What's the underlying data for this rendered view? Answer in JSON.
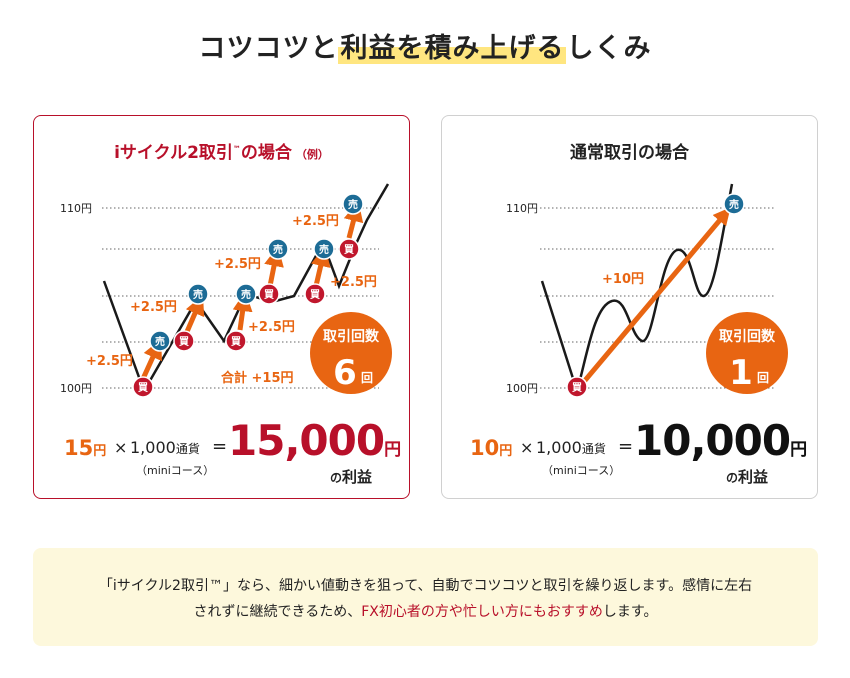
{
  "heading": {
    "pre": "コツコツと",
    "highlight": "利益を積み上げる",
    "post": "しくみ"
  },
  "left": {
    "title_main": "iサイクル2取引",
    "title_tm": "™",
    "title_post": "の場合",
    "title_small": "（例）",
    "axis_top": "110円",
    "axis_bottom": "100円",
    "gain_label": "+2.5円",
    "buy": "買",
    "sell": "売",
    "total_label": "合計 +15円",
    "count_label": "取引回数",
    "count_value": "6",
    "count_unit": "回",
    "formula": {
      "yen": "15",
      "yen_unit": "円",
      "times": "×",
      "qty": "1,000",
      "qty_unit": "通貨",
      "course": "（miniコース）",
      "eq": "=",
      "result": "15,000",
      "result_unit": "円",
      "profit_no": "の",
      "profit": "利益"
    }
  },
  "right": {
    "title": "通常取引の場合",
    "axis_top": "110円",
    "axis_bottom": "100円",
    "gain_label": "+10円",
    "buy": "買",
    "sell": "売",
    "count_label": "取引回数",
    "count_value": "1",
    "count_unit": "回",
    "formula": {
      "yen": "10",
      "yen_unit": "円",
      "times": "×",
      "qty": "1,000",
      "qty_unit": "通貨",
      "course": "（miniコース）",
      "eq": "=",
      "result": "10,000",
      "result_unit": "円",
      "profit_no": "の",
      "profit": "利益"
    }
  },
  "note": {
    "line1": "「iサイクル2取引™」なら、細かい値動きを狙って、自動でコツコツと取引を繰り返します。感情に左右",
    "line2_pre": "されずに継続できるため、",
    "line2_red": "FX初心者の方や忙しい方にもおすすめ",
    "line2_post": "します。"
  },
  "colors": {
    "brand_red": "#b8102a",
    "orange": "#e86512",
    "buy_red": "#c0172d",
    "sell_blue": "#1d6c96",
    "note_bg": "#fdf8dc",
    "highlight": "#ffe680"
  }
}
